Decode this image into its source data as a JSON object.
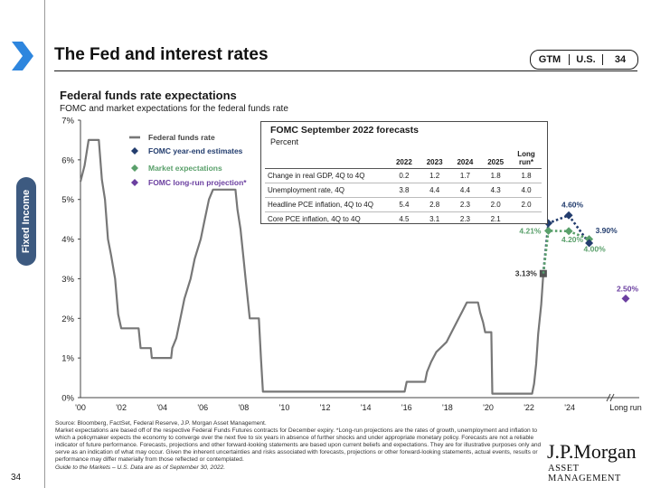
{
  "header": {
    "title": "The Fed and interest rates",
    "tags": [
      "GTM",
      "U.S.",
      "34"
    ],
    "side_tab": "Fixed Income"
  },
  "colors": {
    "navy": "#233d6e",
    "green": "#5aa06b",
    "purple": "#6b3fa0",
    "gray": "#777777",
    "side_tab": "#3d5a80",
    "chevron": "#2e86de"
  },
  "chart_data": {
    "type": "line",
    "title": "Federal funds rate expectations",
    "subtitle": "FOMC and market expectations for the federal funds rate",
    "y_ticks": [
      "0%",
      "1%",
      "2%",
      "3%",
      "4%",
      "5%",
      "6%",
      "7%"
    ],
    "ylim": [
      0,
      7
    ],
    "x_ticks": [
      "'00",
      "'02",
      "'04",
      "'06",
      "'08",
      "'10",
      "'12",
      "'14",
      "'16",
      "'18",
      "'20",
      "'22",
      "'24",
      "Long run"
    ],
    "xlim": [
      2000,
      2025.5
    ],
    "legend": [
      {
        "label": "Federal funds rate",
        "marker": "line",
        "color": "#777777"
      },
      {
        "label": "FOMC year-end estimates",
        "marker": "diamond",
        "color": "#233d6e"
      },
      {
        "label": "Market expectations",
        "marker": "diamond",
        "color": "#5aa06b"
      },
      {
        "label": "FOMC long-run projection*",
        "marker": "diamond",
        "color": "#6b3fa0"
      }
    ],
    "series": [
      {
        "name": "Federal funds rate",
        "points": [
          [
            2000.0,
            5.45
          ],
          [
            2000.2,
            5.85
          ],
          [
            2000.4,
            6.5
          ],
          [
            2000.9,
            6.5
          ],
          [
            2001.05,
            5.5
          ],
          [
            2001.2,
            5.0
          ],
          [
            2001.35,
            4.0
          ],
          [
            2001.5,
            3.6
          ],
          [
            2001.7,
            3.0
          ],
          [
            2001.85,
            2.1
          ],
          [
            2002.0,
            1.75
          ],
          [
            2002.85,
            1.75
          ],
          [
            2002.95,
            1.25
          ],
          [
            2003.45,
            1.25
          ],
          [
            2003.5,
            1.0
          ],
          [
            2004.45,
            1.0
          ],
          [
            2004.5,
            1.25
          ],
          [
            2004.7,
            1.5
          ],
          [
            2004.9,
            2.0
          ],
          [
            2005.1,
            2.5
          ],
          [
            2005.4,
            3.0
          ],
          [
            2005.6,
            3.5
          ],
          [
            2005.9,
            4.0
          ],
          [
            2006.1,
            4.5
          ],
          [
            2006.3,
            5.0
          ],
          [
            2006.5,
            5.25
          ],
          [
            2007.6,
            5.25
          ],
          [
            2007.7,
            4.75
          ],
          [
            2007.85,
            4.25
          ],
          [
            2008.0,
            3.5
          ],
          [
            2008.1,
            3.0
          ],
          [
            2008.3,
            2.0
          ],
          [
            2008.75,
            2.0
          ],
          [
            2008.85,
            1.0
          ],
          [
            2008.95,
            0.15
          ],
          [
            2015.9,
            0.15
          ],
          [
            2016.0,
            0.4
          ],
          [
            2016.9,
            0.4
          ],
          [
            2017.0,
            0.65
          ],
          [
            2017.2,
            0.9
          ],
          [
            2017.45,
            1.15
          ],
          [
            2017.95,
            1.4
          ],
          [
            2018.2,
            1.65
          ],
          [
            2018.45,
            1.9
          ],
          [
            2018.7,
            2.15
          ],
          [
            2018.95,
            2.4
          ],
          [
            2019.5,
            2.4
          ],
          [
            2019.6,
            2.15
          ],
          [
            2019.75,
            1.9
          ],
          [
            2019.85,
            1.65
          ],
          [
            2020.15,
            1.65
          ],
          [
            2020.2,
            0.1
          ],
          [
            2022.15,
            0.1
          ],
          [
            2022.25,
            0.35
          ],
          [
            2022.35,
            0.85
          ],
          [
            2022.45,
            1.6
          ],
          [
            2022.6,
            2.35
          ],
          [
            2022.7,
            3.13
          ]
        ]
      },
      {
        "name": "FOMC year-end estimates",
        "points": [
          [
            2022.7,
            3.13
          ],
          [
            2022.95,
            4.4
          ],
          [
            2023.95,
            4.6
          ],
          [
            2024.95,
            3.9
          ]
        ],
        "labels": [
          "3.13%",
          "4.40%",
          "4.60%",
          "3.90%"
        ]
      },
      {
        "name": "Market expectations",
        "points": [
          [
            2022.95,
            4.21
          ],
          [
            2023.95,
            4.2
          ],
          [
            2024.95,
            4.0
          ]
        ],
        "labels": [
          "4.21%",
          "4.20%",
          "4.00%"
        ]
      },
      {
        "name": "FOMC long-run projection*",
        "points": [
          [
            "Long run",
            2.5
          ]
        ],
        "labels": [
          "2.50%"
        ]
      }
    ]
  },
  "forecast_table": {
    "title": "FOMC September 2022 forecasts",
    "subtitle": "Percent",
    "columns": [
      "",
      "2022",
      "2023",
      "2024",
      "2025",
      "Long run*"
    ],
    "rows": [
      [
        "Change in real GDP, 4Q to 4Q",
        "0.2",
        "1.2",
        "1.7",
        "1.8",
        "1.8"
      ],
      [
        "Unemployment rate, 4Q",
        "3.8",
        "4.4",
        "4.4",
        "4.3",
        "4.0"
      ],
      [
        "Headline PCE inflation, 4Q to 4Q",
        "5.4",
        "2.8",
        "2.3",
        "2.0",
        "2.0"
      ],
      [
        "Core PCE inflation, 4Q to 4Q",
        "4.5",
        "3.1",
        "2.3",
        "2.1",
        ""
      ]
    ]
  },
  "footnotes": {
    "source": "Source: Bloomberg, FactSet, Federal Reserve, J.P. Morgan Asset Management.",
    "body": "Market expectations are based off of the respective Federal Funds Futures contracts for December expiry. *Long-run projections are the rates of growth, unemployment and inflation to which a policymaker expects the economy to converge over the next five to six years in absence of further shocks and under appropriate monetary policy. Forecasts are not a reliable indicator of future performance. Forecasts, projections and other forward-looking statements are based upon current beliefs and expectations. They are for illustrative purposes only and serve as an indication of what may occur. Given the inherent uncertainties and risks associated with forecasts, projections or other forward-looking statements, actual events, results or performance may differ materially from those reflected or contemplated.",
    "guide": "Guide to the Markets – U.S. Data are as of September 30, 2022."
  },
  "page_number": "34",
  "brand": {
    "name": "J.P.Morgan",
    "sub": "ASSET MANAGEMENT"
  }
}
